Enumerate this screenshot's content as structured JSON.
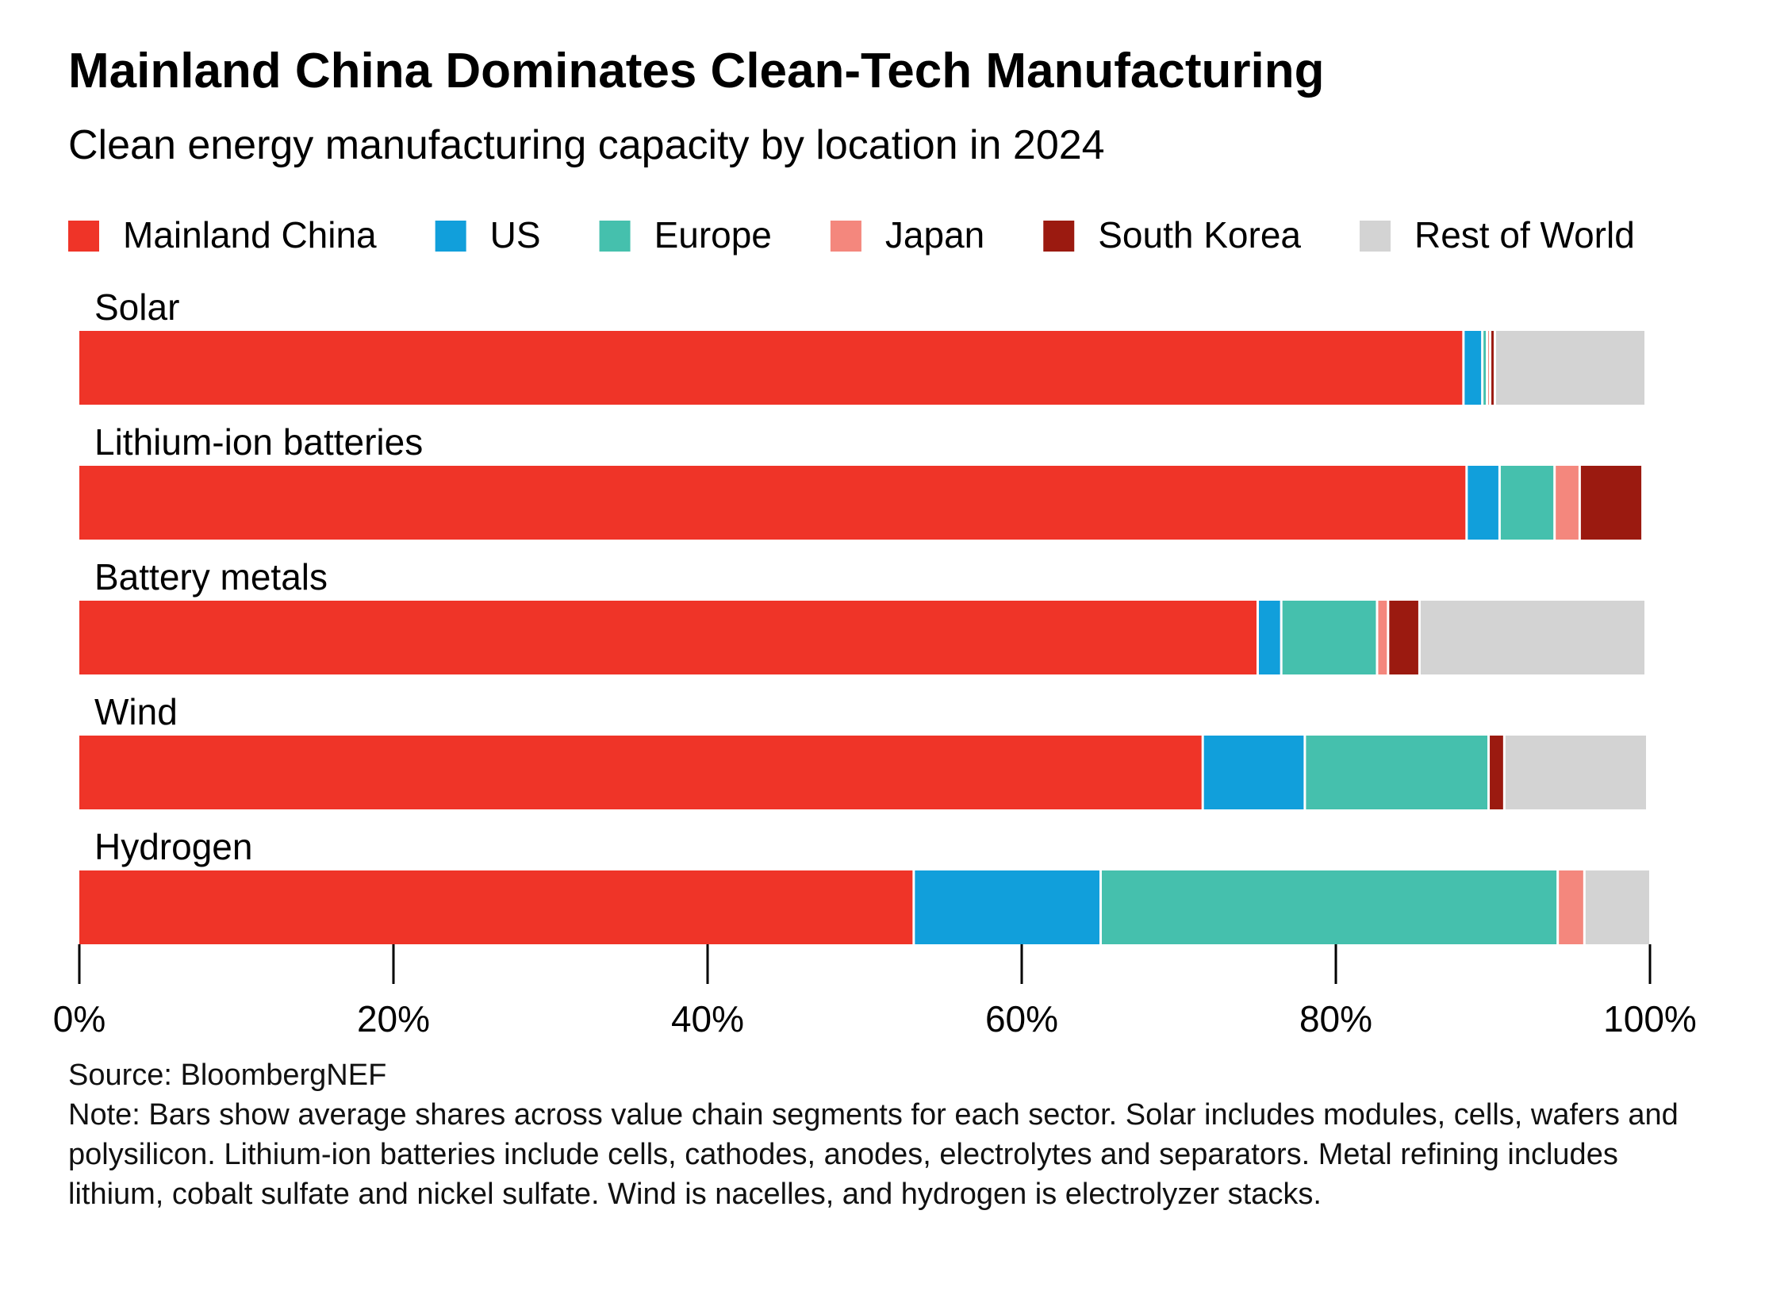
{
  "chart_data": {
    "type": "stacked-bar-horizontal",
    "title": "Mainland China Dominates Clean-Tech Manufacturing",
    "subtitle": "Clean energy manufacturing capacity by location in 2024",
    "categories": [
      "Solar",
      "Lithium-ion batteries",
      "Battery metals",
      "Wind",
      "Hydrogen"
    ],
    "series": [
      {
        "name": "Mainland China",
        "color": "#ef3428",
        "values": [
          88.2,
          88.4,
          75.1,
          71.6,
          53.2
        ]
      },
      {
        "name": "US",
        "color": "#119fdb",
        "values": [
          1.2,
          2.1,
          1.5,
          6.5,
          11.9
        ]
      },
      {
        "name": "Europe",
        "color": "#45c0ad",
        "values": [
          0.3,
          3.5,
          6.1,
          11.7,
          29.1
        ]
      },
      {
        "name": "Japan",
        "color": "#f4877d",
        "values": [
          0.2,
          1.6,
          0.7,
          0,
          1.7
        ]
      },
      {
        "name": "South Korea",
        "color": "#9b1a10",
        "values": [
          0.3,
          4.0,
          2.0,
          1.0,
          0
        ]
      },
      {
        "name": "Rest of World",
        "color": "#d3d3d3",
        "values": [
          9.6,
          0,
          14.4,
          9.1,
          4.2
        ]
      }
    ],
    "xlim": [
      0,
      100
    ],
    "xticks": [
      {
        "value": 0,
        "label": "0%"
      },
      {
        "value": 20,
        "label": "20%"
      },
      {
        "value": 40,
        "label": "40%"
      },
      {
        "value": 60,
        "label": "60%"
      },
      {
        "value": 80,
        "label": "80%"
      },
      {
        "value": 100,
        "label": "100%"
      }
    ],
    "source": "Source: BloombergNEF",
    "note": "Note: Bars show average shares across value chain segments for each sector. Solar includes modules, cells, wafers and polysilicon. Lithium-ion batteries include cells, cathodes, anodes, electrolytes and separators. Metal refining includes lithium, cobalt sulfate and nickel sulfate. Wind is nacelles, and hydrogen is electrolyzer stacks."
  }
}
